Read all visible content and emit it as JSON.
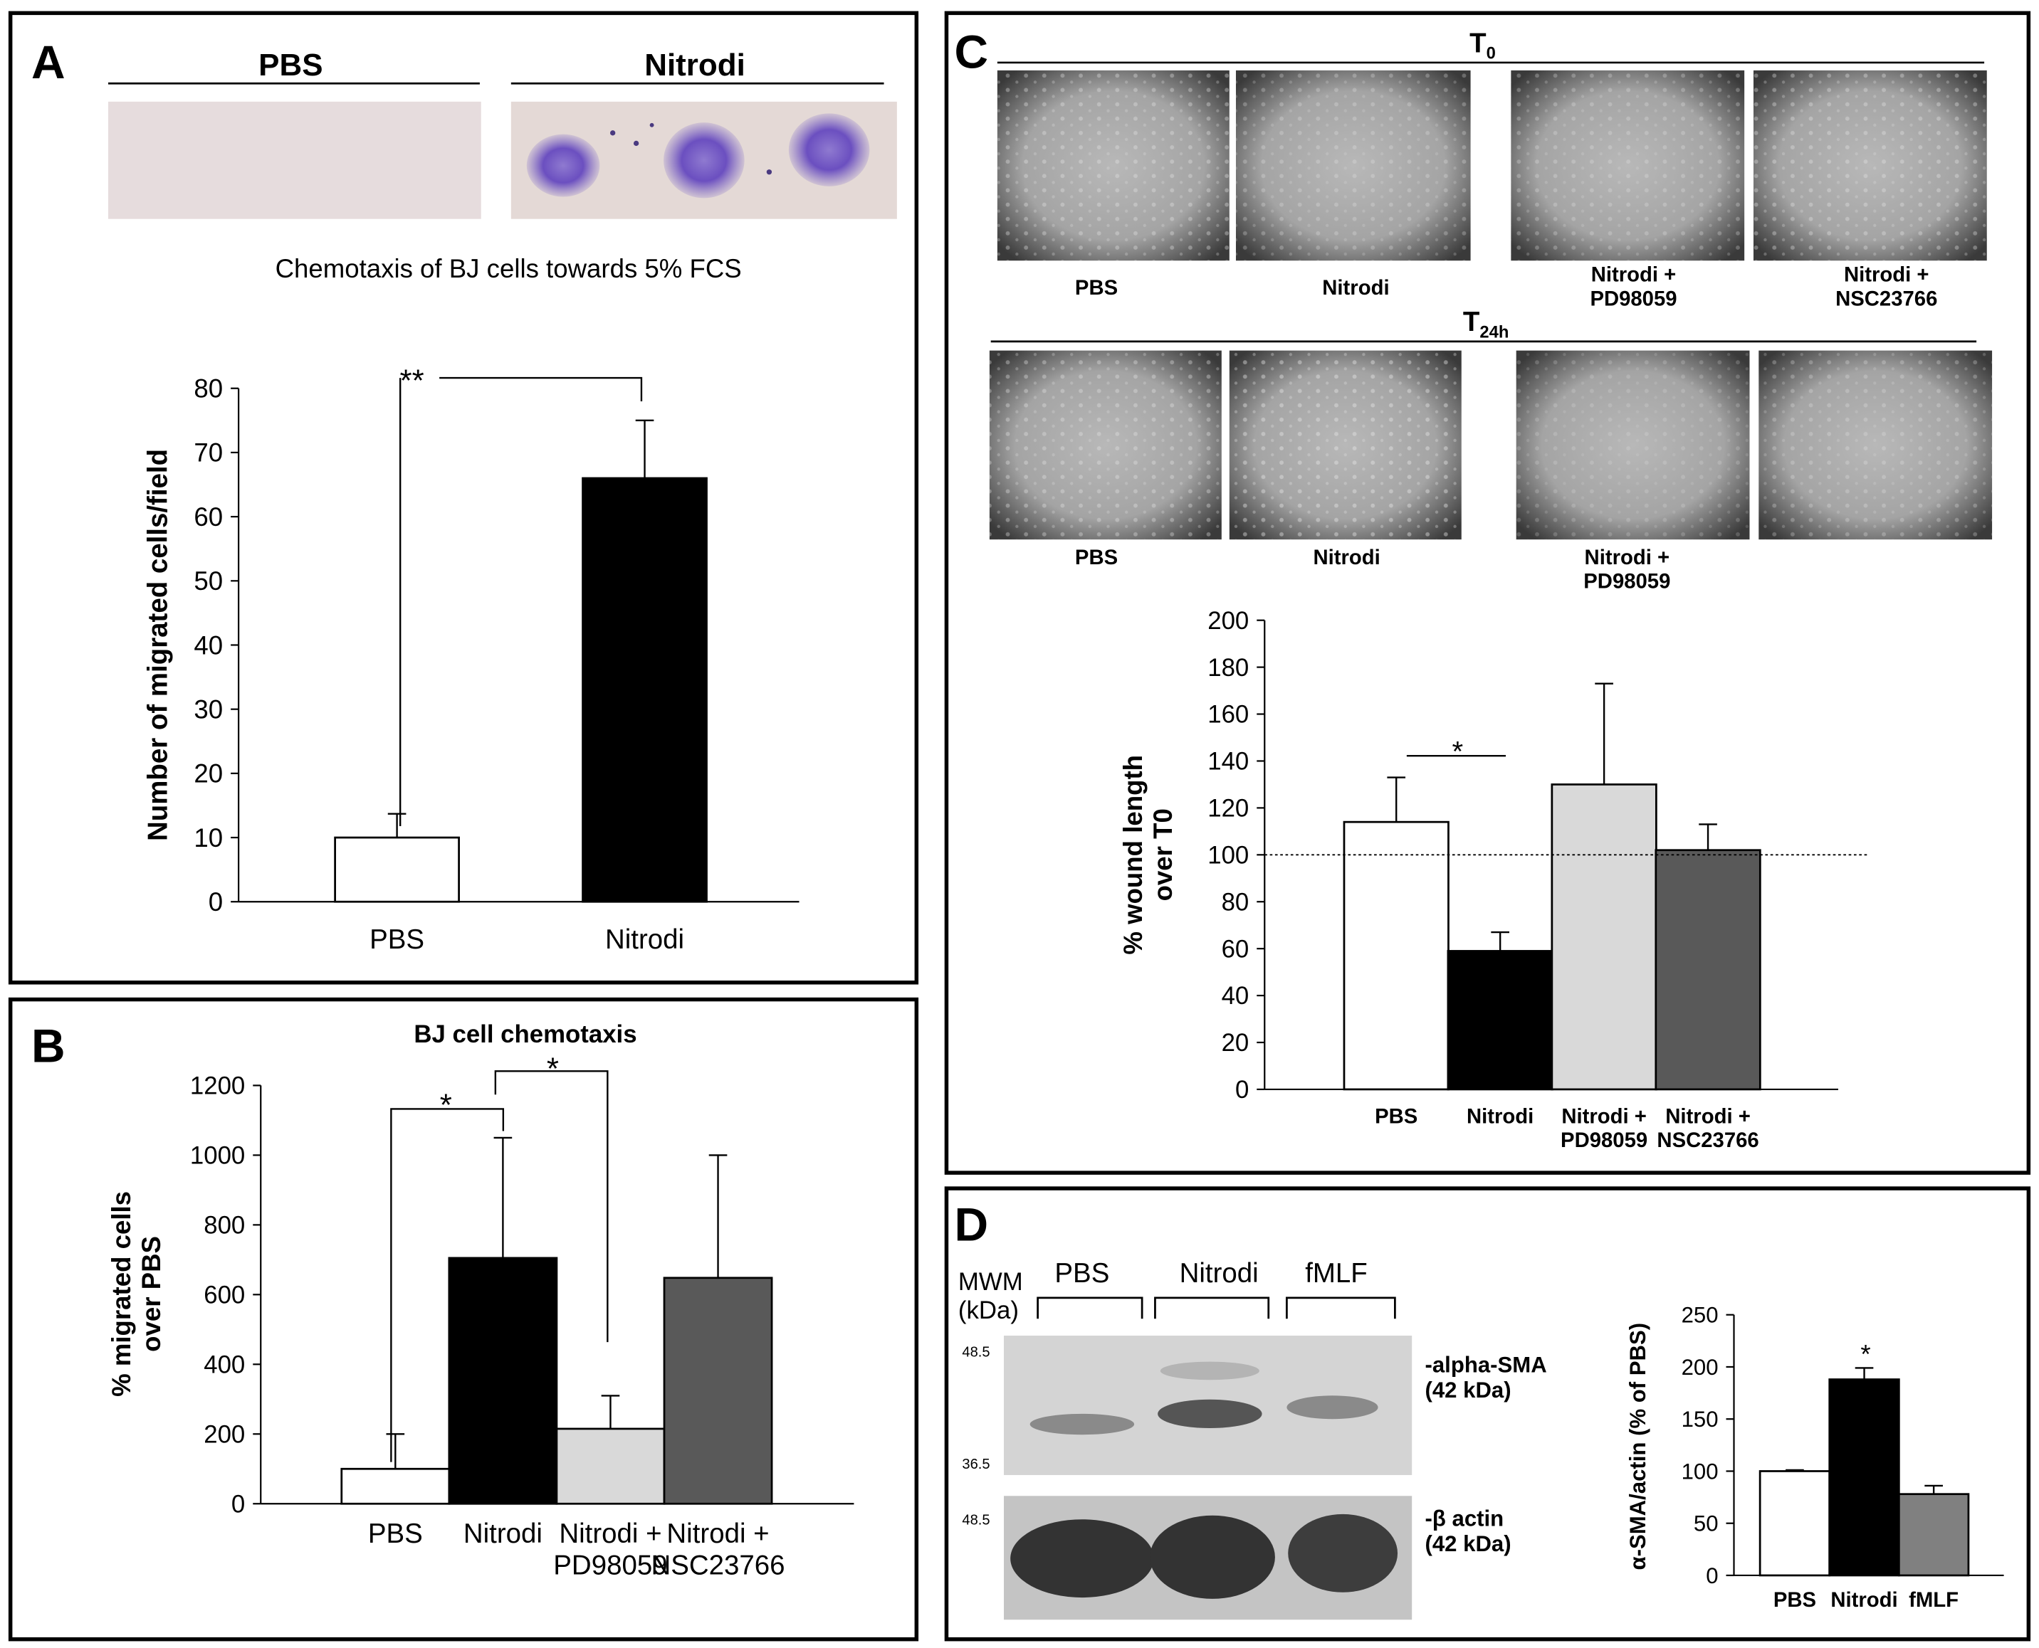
{
  "panel_labels": [
    "A",
    "B",
    "C",
    "D"
  ],
  "panel_a_images": {
    "labels": [
      "PBS",
      "Nitrodi"
    ]
  },
  "panel_c_images": {
    "rows": [
      {
        "time": "T",
        "time_sub": "0",
        "labels": [
          "PBS",
          "Nitrodi",
          "Nitrodi +\nPD98059",
          "Nitrodi +\nNSC23766"
        ]
      },
      {
        "time": "T",
        "time_sub": "24h",
        "labels": [
          "PBS",
          "Nitrodi",
          "Nitrodi +\nPD98059"
        ]
      }
    ]
  },
  "panel_d_blot": {
    "mwm": "MWM\n(kDa)",
    "lanes": [
      "PBS",
      "Nitrodi",
      "fMLF"
    ],
    "markers": [
      "48.5",
      "36.5",
      "48.5"
    ],
    "bands": [
      "-alpha-SMA\n(42 kDa)",
      "-β actin\n(42 kDa)"
    ]
  },
  "chart_data": [
    {
      "type": "bar",
      "title": "Chemotaxis of BJ cells towards 5% FCS",
      "y_label": "Number of migrated cells/field",
      "categories": [
        "PBS",
        "Nitrodi"
      ],
      "values": [
        10,
        66
      ],
      "errors": [
        3.7,
        9
      ],
      "colors": [
        "#ffffff",
        "#000000"
      ],
      "ylim": [
        0,
        80
      ],
      "yticks": [
        0,
        10,
        20,
        30,
        40,
        50,
        60,
        70,
        80
      ],
      "annotations": [
        "**"
      ]
    },
    {
      "type": "bar",
      "title": "BJ cell chemotaxis",
      "y_label": "% migrated cells\nover PBS",
      "categories": [
        "PBS",
        "Nitrodi",
        "Nitrodi +\nPD98059",
        "Nitrodi +\nNSC23766"
      ],
      "values": [
        100,
        705,
        215,
        648
      ],
      "errors": [
        100,
        345,
        95,
        352
      ],
      "colors": [
        "#ffffff",
        "#000000",
        "#d9d9d9",
        "#595959"
      ],
      "ylim": [
        0,
        1200
      ],
      "yticks": [
        0,
        200,
        400,
        600,
        800,
        1000,
        1200
      ],
      "annotations": [
        "*",
        "*"
      ]
    },
    {
      "type": "bar",
      "y_label": "% wound length\nover T0",
      "categories": [
        "PBS",
        "Nitrodi",
        "Nitrodi +\nPD98059",
        "Nitrodi +\nNSC23766"
      ],
      "values": [
        114,
        59,
        130,
        102
      ],
      "errors": [
        19,
        8,
        43,
        11
      ],
      "colors": [
        "#ffffff",
        "#000000",
        "#d9d9d9",
        "#595959"
      ],
      "ylim": [
        0,
        200
      ],
      "yticks": [
        0,
        20,
        40,
        60,
        80,
        100,
        120,
        140,
        160,
        180,
        200
      ],
      "reference_line": 100,
      "annotations": [
        "*"
      ]
    },
    {
      "type": "bar",
      "y_label": "α-SMA/actin (% of PBS)",
      "categories": [
        "PBS",
        "Nitrodi",
        "fMLF"
      ],
      "values": [
        100,
        188,
        78
      ],
      "errors": [
        1,
        11,
        8
      ],
      "colors": [
        "#ffffff",
        "#000000",
        "#808080"
      ],
      "ylim": [
        0,
        250
      ],
      "yticks": [
        0,
        50,
        100,
        150,
        200,
        250
      ],
      "annotations": [
        "*"
      ]
    }
  ]
}
